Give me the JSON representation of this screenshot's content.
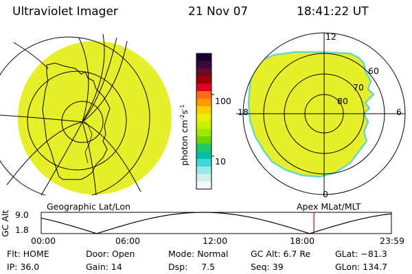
{
  "header": {
    "title": "Ultraviolet Imager",
    "date": "21 Nov 07",
    "time": "18:41:22 UT"
  },
  "colorbar": {
    "unit": "photon cm",
    "unit_exp1": "-2",
    "unit_mid": "s",
    "unit_exp2": "-1",
    "tick_high": "100",
    "tick_low": "10",
    "colors": [
      "#1a0033",
      "#3a0a3a",
      "#6a0a2a",
      "#a00000",
      "#e00020",
      "#ff6a1a",
      "#ff9a00",
      "#ffd000",
      "#e8f000",
      "#c8f000",
      "#a0e800",
      "#66d800",
      "#22c860",
      "#00c0a8",
      "#40d8d8",
      "#9ae8e8",
      "#d0f0f0",
      "#f2f8f8"
    ]
  },
  "geo_panel": {
    "label": "Geographic Lat/Lon",
    "fill_color": "#e6ef29"
  },
  "polar_panel": {
    "label": "Apex MLat/MLT",
    "hour_top": "12",
    "hour_left": "18",
    "hour_right": "6",
    "hour_bottom": "0",
    "lat_labels": [
      "80",
      "70",
      "60"
    ],
    "fill_color": "#e6ef29",
    "edge_color": "#66d8c8"
  },
  "orbit_plot": {
    "ylabel": "GC Alt",
    "ymax_label": "9.0",
    "ymin_label": "1.8",
    "x_ticks": [
      "00:00",
      "06:00",
      "12:00",
      "18:00",
      "23:59"
    ],
    "current_time_hours": 18.69,
    "marker_color": "#cc0000"
  },
  "status": {
    "row1": [
      "Flt: HOME",
      "Door: Open",
      "Mode: Normal",
      "GC Alt: 6.7 Re",
      "GLat: −81.3"
    ],
    "row2": [
      "IP: 36.0",
      "Gain: 14",
      "Dsp:     7.5",
      "Seq: 39",
      "GLon: 134.7"
    ]
  }
}
